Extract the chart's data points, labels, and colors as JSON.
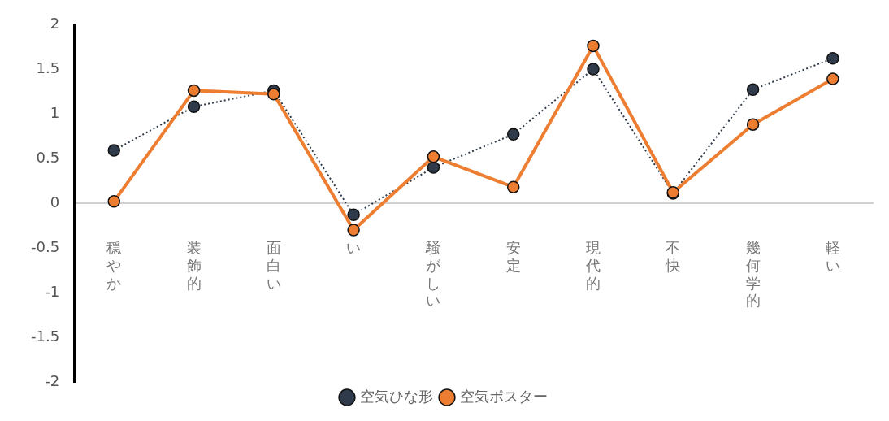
{
  "chart_data": {
    "type": "line",
    "categories": [
      "穏やか",
      "装飾的",
      "面白い",
      "い",
      "騒がしい",
      "安定",
      "現代的",
      "不快",
      "幾何学的",
      "軽い"
    ],
    "series": [
      {
        "name": "空気ひな形",
        "color": "#2f3b4a",
        "line_style": "dotted",
        "values": [
          0.59,
          1.08,
          1.26,
          -0.13,
          0.4,
          0.77,
          1.5,
          0.11,
          1.27,
          1.62
        ]
      },
      {
        "name": "空気ポスター",
        "color": "#ed7d31",
        "line_style": "solid",
        "values": [
          0.02,
          1.26,
          1.22,
          -0.3,
          0.52,
          0.18,
          1.76,
          0.12,
          0.88,
          1.39
        ]
      }
    ],
    "ylim": [
      -2,
      2
    ],
    "yticks": [
      -2,
      -1.5,
      -1,
      -0.5,
      0,
      0.5,
      1,
      1.5,
      2
    ],
    "grid": false,
    "legend": "bottom",
    "marker": "circle"
  }
}
